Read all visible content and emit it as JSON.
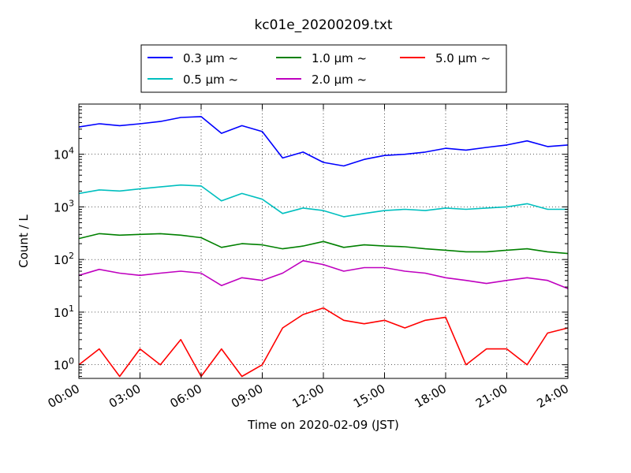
{
  "chart_data": {
    "type": "line",
    "title": "kc01e_20200209.txt",
    "xlabel": "Time on 2020-02-09 (JST)",
    "ylabel": "Count / L",
    "yscale": "log",
    "grid": true,
    "legend_position": "top",
    "x_ticks": [
      "00:00",
      "03:00",
      "06:00",
      "09:00",
      "12:00",
      "15:00",
      "18:00",
      "21:00",
      "24:00"
    ],
    "y_ticks": [
      {
        "base": "10",
        "exp": "0"
      },
      {
        "base": "10",
        "exp": "1"
      },
      {
        "base": "10",
        "exp": "2"
      },
      {
        "base": "10",
        "exp": "3"
      },
      {
        "base": "10",
        "exp": "4"
      }
    ],
    "ylim": [
      0.55,
      90000
    ],
    "x": [
      "00:00",
      "01:00",
      "02:00",
      "03:00",
      "04:00",
      "05:00",
      "06:00",
      "07:00",
      "08:00",
      "09:00",
      "10:00",
      "11:00",
      "12:00",
      "13:00",
      "14:00",
      "15:00",
      "16:00",
      "17:00",
      "18:00",
      "19:00",
      "20:00",
      "21:00",
      "22:00",
      "23:00",
      "24:00"
    ],
    "series": [
      {
        "name": "0.3 μm  ~",
        "color": "#0000ff",
        "values": [
          33000,
          38000,
          35000,
          38000,
          42000,
          50000,
          52000,
          25000,
          35000,
          27000,
          8500,
          11000,
          7000,
          6000,
          8000,
          9500,
          10000,
          11000,
          13000,
          12000,
          13500,
          15000,
          18000,
          14000,
          15000
        ]
      },
      {
        "name": "0.5 μm  ~",
        "color": "#00bfbf",
        "values": [
          1800,
          2100,
          2000,
          2200,
          2400,
          2600,
          2500,
          1300,
          1800,
          1400,
          750,
          950,
          850,
          650,
          750,
          850,
          900,
          850,
          950,
          900,
          950,
          1000,
          1150,
          900,
          900
        ]
      },
      {
        "name": "1.0 μm  ~",
        "color": "#008000",
        "values": [
          250,
          310,
          290,
          300,
          310,
          290,
          260,
          170,
          200,
          190,
          160,
          180,
          220,
          170,
          190,
          180,
          175,
          160,
          150,
          140,
          140,
          150,
          160,
          140,
          130
        ]
      },
      {
        "name": "2.0 μm  ~",
        "color": "#bf00bf",
        "values": [
          50,
          65,
          55,
          50,
          55,
          60,
          55,
          32,
          45,
          40,
          55,
          95,
          80,
          60,
          70,
          70,
          60,
          55,
          45,
          40,
          35,
          40,
          45,
          40,
          28
        ]
      },
      {
        "name": "5.0 μm  ~",
        "color": "#ff0000",
        "values": [
          1,
          2,
          0.6,
          2,
          1,
          3,
          0.6,
          2,
          0.6,
          1,
          5,
          9,
          12,
          7,
          6,
          7,
          5,
          7,
          8,
          1,
          2,
          2,
          1,
          4,
          5
        ]
      }
    ]
  }
}
